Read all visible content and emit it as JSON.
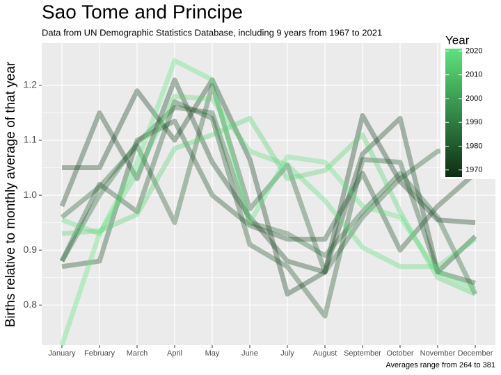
{
  "chart_data": {
    "type": "line",
    "title": "Sao Tome and Principe",
    "subtitle": "Data from UN Demographic Statistics Database, including 9 years from 1967 to 2021",
    "y_label": "Births relative to monthly average of that year",
    "caption": "Averages range from 264 to 381",
    "categories": [
      "January",
      "February",
      "March",
      "April",
      "May",
      "June",
      "July",
      "August",
      "September",
      "October",
      "November",
      "December"
    ],
    "series": [
      {
        "color": "#123a1c",
        "values": [
          1.05,
          1.05,
          1.19,
          1.1,
          1.21,
          1.065,
          0.82,
          0.86,
          1.145,
          1.025,
          0.955,
          0.95
        ]
      },
      {
        "color": "#16421f",
        "values": [
          0.98,
          1.15,
          1.03,
          1.21,
          1.06,
          0.96,
          0.88,
          0.86,
          1.075,
          1.14,
          0.86,
          0.925
        ]
      },
      {
        "color": "#1a4a24",
        "values": [
          0.87,
          0.88,
          1.1,
          1.135,
          1.0,
          0.945,
          0.92,
          0.92,
          1.04,
          0.9,
          0.98,
          1.04
        ]
      },
      {
        "color": "#1d5228",
        "values": [
          0.88,
          1.02,
          0.97,
          1.17,
          1.14,
          0.91,
          0.87,
          0.78,
          1.065,
          1.06,
          0.86,
          0.84
        ]
      },
      {
        "color": "#215b2d",
        "values": [
          0.96,
          1.015,
          1.09,
          0.95,
          1.2,
          0.975,
          1.055,
          0.86,
          0.96,
          1.03,
          1.08,
          1.08
        ]
      },
      {
        "color": "#256331",
        "values": [
          0.88,
          1.0,
          1.095,
          1.16,
          1.15,
          0.95,
          0.93,
          0.89,
          0.97,
          1.04,
          0.96,
          0.82
        ]
      },
      {
        "color": "#52d06e",
        "values": [
          0.93,
          0.935,
          0.965,
          1.085,
          1.11,
          1.14,
          1.03,
          1.045,
          1.11,
          0.97,
          0.85,
          0.82
        ]
      },
      {
        "color": "#58da75",
        "values": [
          0.955,
          0.93,
          1.04,
          1.18,
          1.175,
          1.08,
          1.055,
          0.99,
          0.905,
          0.87,
          0.87,
          0.92
        ]
      },
      {
        "color": "#5de47c",
        "values": [
          0.727,
          0.93,
          1.06,
          1.245,
          1.21,
          0.95,
          1.07,
          1.06,
          0.98,
          0.96,
          0.86,
          0.83
        ]
      }
    ],
    "ylim": [
      0.727,
      1.277
    ],
    "yticks": [
      0.8,
      0.9,
      {
        "value": 1.0,
        "label": "1.0"
      },
      1.1,
      1.2
    ],
    "grid": true,
    "colorbar": {
      "title": "Year",
      "lim": [
        1967,
        2021
      ],
      "ticks": [
        1970,
        1980,
        1990,
        2000,
        2010,
        2020
      ],
      "colors": [
        "#0b2e12",
        "#5de47c"
      ]
    }
  }
}
